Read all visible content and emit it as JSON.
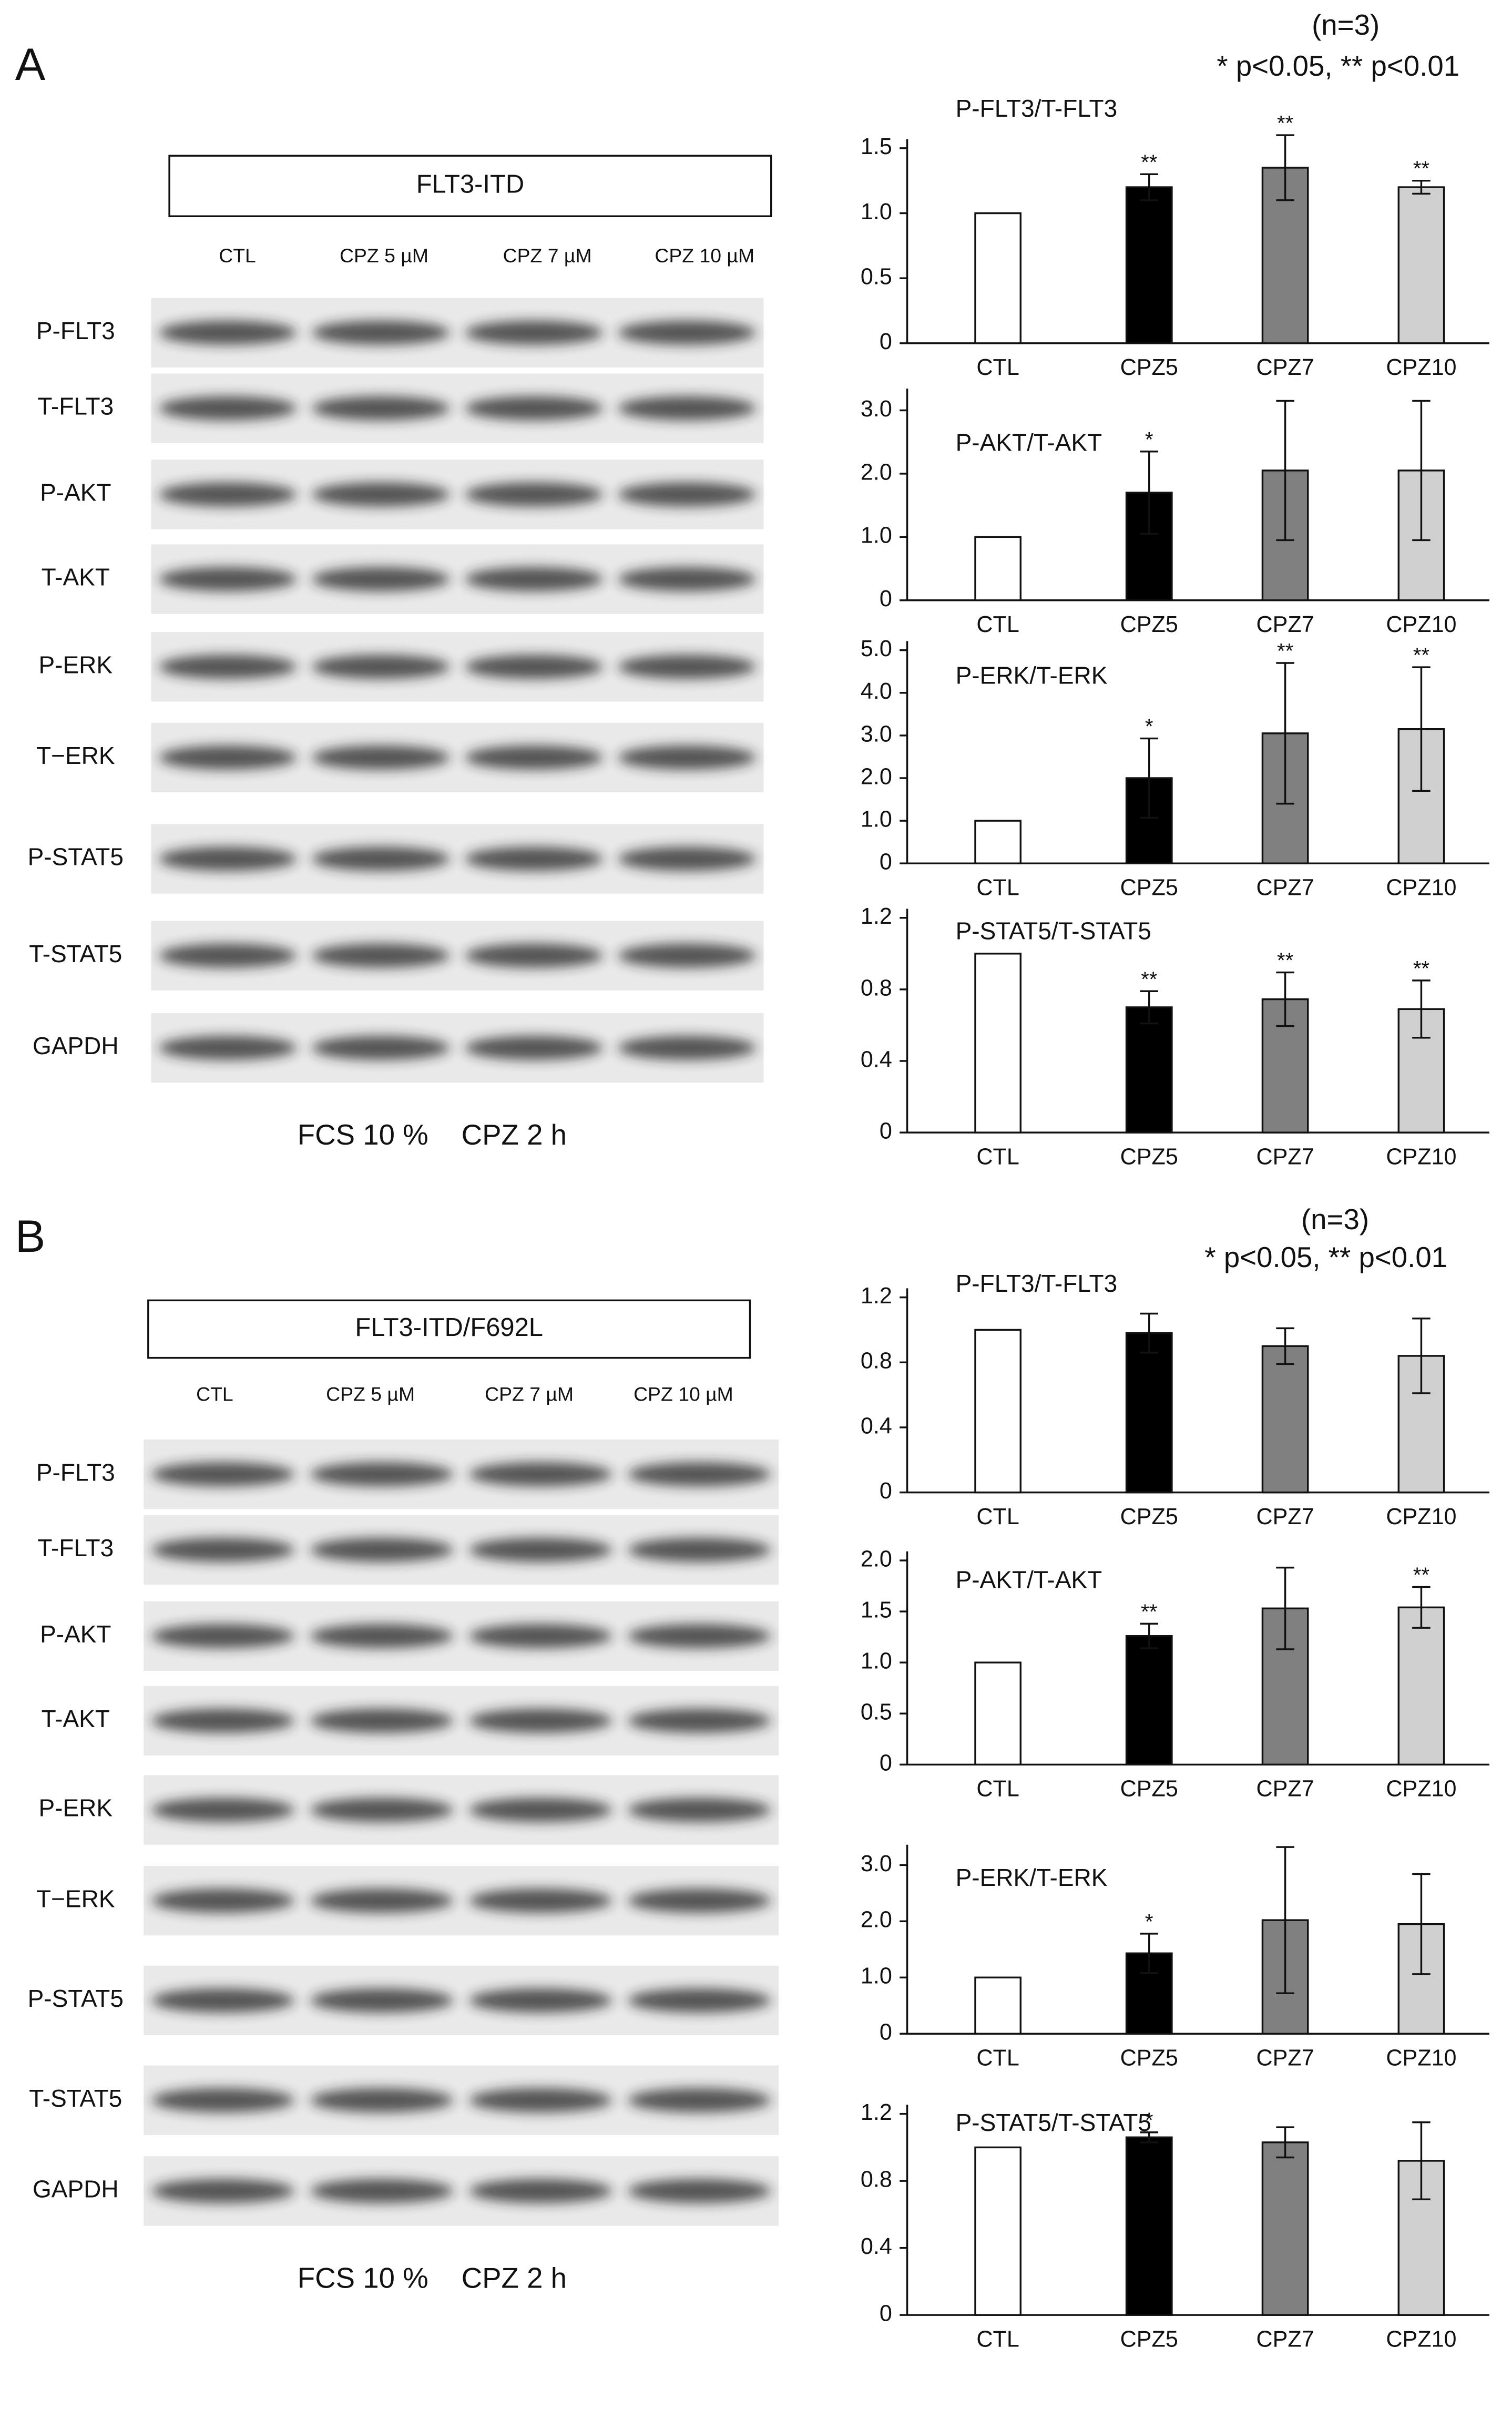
{
  "panels": [
    {
      "label": "A",
      "n": "(n=3)",
      "significance": "* p<0.05, ** p<0.01",
      "construct": "FLT3-ITD",
      "lanes": [
        "CTL",
        "CPZ 5 µM",
        "CPZ 7 µM",
        "CPZ 10 µM"
      ],
      "blots": [
        "P-FLT3",
        "T-FLT3",
        "P-AKT",
        "T-AKT",
        "P-ERK",
        "T−ERK",
        "P-STAT5",
        "T-STAT5",
        "GAPDH"
      ],
      "condition": "FCS 10 %",
      "treatment": "CPZ 2 h"
    },
    {
      "label": "B",
      "n": "(n=3)",
      "significance": "* p<0.05, ** p<0.01",
      "construct": "FLT3-ITD/F692L",
      "lanes": [
        "CTL",
        "CPZ 5 µM",
        "CPZ 7 µM",
        "CPZ 10 µM"
      ],
      "blots": [
        "P-FLT3",
        "T-FLT3",
        "P-AKT",
        "T-AKT",
        "P-ERK",
        "T−ERK",
        "P-STAT5",
        "T-STAT5",
        "GAPDH"
      ],
      "condition": "FCS 10 %",
      "treatment": "CPZ 2 h"
    }
  ],
  "chart_data": [
    {
      "type": "bar",
      "title": "P-FLT3/T-FLT3",
      "categories": [
        "CTL",
        "CPZ5",
        "CPZ7",
        "CPZ10"
      ],
      "values": [
        1.0,
        1.2,
        1.35,
        1.2
      ],
      "errors": [
        null,
        0.1,
        0.25,
        0.05
      ],
      "annotations": [
        null,
        "**",
        "**",
        "**"
      ],
      "colors": [
        "#ffffff",
        "#000000",
        "#808080",
        "#d0d0d0"
      ],
      "ylim": [
        0,
        1.5
      ],
      "yticks": [
        0,
        0.5,
        {
          "value": 1,
          "label": "1.0"
        },
        1.5
      ]
    },
    {
      "type": "bar",
      "title": "P-AKT/T-AKT",
      "categories": [
        "CTL",
        "CPZ5",
        "CPZ7",
        "CPZ10"
      ],
      "values": [
        1.0,
        1.7,
        2.05,
        2.05
      ],
      "errors": [
        null,
        0.65,
        1.1,
        1.1
      ],
      "annotations": [
        null,
        "*",
        null,
        null
      ],
      "colors": [
        "#ffffff",
        "#000000",
        "#808080",
        "#d0d0d0"
      ],
      "ylim": [
        0,
        3.2
      ],
      "yticks": [
        0,
        {
          "value": 1,
          "label": "1.0"
        },
        {
          "value": 2,
          "label": "2.0"
        },
        {
          "value": 3,
          "label": "3.0"
        }
      ]
    },
    {
      "type": "bar",
      "title": "P-ERK/T-ERK",
      "categories": [
        "CTL",
        "CPZ5",
        "CPZ7",
        "CPZ10"
      ],
      "values": [
        1.0,
        2.0,
        3.05,
        3.15
      ],
      "errors": [
        null,
        0.93,
        1.65,
        1.45
      ],
      "annotations": [
        null,
        "*",
        "**",
        "**"
      ],
      "colors": [
        "#ffffff",
        "#000000",
        "#808080",
        "#d0d0d0"
      ],
      "ylim": [
        0,
        5
      ],
      "yticks": [
        0,
        {
          "value": 1,
          "label": "1.0"
        },
        {
          "value": 2,
          "label": "2.0"
        },
        {
          "value": 3,
          "label": "3.0"
        },
        {
          "value": 4,
          "label": "4.0"
        },
        {
          "value": 5,
          "label": "5.0"
        }
      ]
    },
    {
      "type": "bar",
      "title": "P-STAT5/T-STAT5",
      "categories": [
        "CTL",
        "CPZ5",
        "CPZ7",
        "CPZ10"
      ],
      "values": [
        1.0,
        0.7,
        0.745,
        0.69
      ],
      "errors": [
        null,
        0.09,
        0.15,
        0.16
      ],
      "annotations": [
        null,
        "**",
        "**",
        "**"
      ],
      "colors": [
        "#ffffff",
        "#000000",
        "#808080",
        "#d0d0d0"
      ],
      "ylim": [
        0,
        1.2
      ],
      "yticks": [
        0,
        0.4,
        0.8,
        1.2
      ]
    },
    {
      "type": "bar",
      "title": "P-FLT3/T-FLT3",
      "categories": [
        "CTL",
        "CPZ5",
        "CPZ7",
        "CPZ10"
      ],
      "values": [
        1.0,
        0.98,
        0.9,
        0.84
      ],
      "errors": [
        null,
        0.12,
        0.11,
        0.23
      ],
      "annotations": [
        null,
        null,
        null,
        null
      ],
      "colors": [
        "#ffffff",
        "#000000",
        "#808080",
        "#d0d0d0"
      ],
      "ylim": [
        0,
        1.2
      ],
      "yticks": [
        0,
        0.4,
        0.8,
        1.2
      ]
    },
    {
      "type": "bar",
      "title": "P-AKT/T-AKT",
      "categories": [
        "CTL",
        "CPZ5",
        "CPZ7",
        "CPZ10"
      ],
      "values": [
        1.0,
        1.26,
        1.53,
        1.54
      ],
      "errors": [
        null,
        0.12,
        0.4,
        0.2
      ],
      "annotations": [
        null,
        "**",
        null,
        "**"
      ],
      "colors": [
        "#ffffff",
        "#000000",
        "#808080",
        "#d0d0d0"
      ],
      "ylim": [
        0,
        2
      ],
      "yticks": [
        0,
        0.5,
        {
          "value": 1,
          "label": "1.0"
        },
        1.5,
        {
          "value": 2,
          "label": "2.0"
        }
      ]
    },
    {
      "type": "bar",
      "title": "P-ERK/T-ERK",
      "categories": [
        "CTL",
        "CPZ5",
        "CPZ7",
        "CPZ10"
      ],
      "values": [
        1.0,
        1.43,
        2.02,
        1.95
      ],
      "errors": [
        null,
        0.35,
        1.3,
        0.89
      ],
      "annotations": [
        null,
        "*",
        null,
        null
      ],
      "colors": [
        "#ffffff",
        "#000000",
        "#808080",
        "#d0d0d0"
      ],
      "ylim": [
        0,
        3.2
      ],
      "yticks": [
        0,
        {
          "value": 1,
          "label": "1.0"
        },
        {
          "value": 2,
          "label": "2.0"
        },
        {
          "value": 3,
          "label": "3.0"
        }
      ]
    },
    {
      "type": "bar",
      "title": "P-STAT5/T-STAT5",
      "categories": [
        "CTL",
        "CPZ5",
        "CPZ7",
        "CPZ10"
      ],
      "values": [
        1.0,
        1.06,
        1.03,
        0.92
      ],
      "errors": [
        null,
        0.03,
        0.09,
        0.23
      ],
      "annotations": [
        null,
        "*",
        null,
        null
      ],
      "colors": [
        "#ffffff",
        "#000000",
        "#808080",
        "#d0d0d0"
      ],
      "ylim": [
        0,
        1.2
      ],
      "yticks": [
        0,
        0.4,
        0.8,
        1.2
      ]
    }
  ]
}
